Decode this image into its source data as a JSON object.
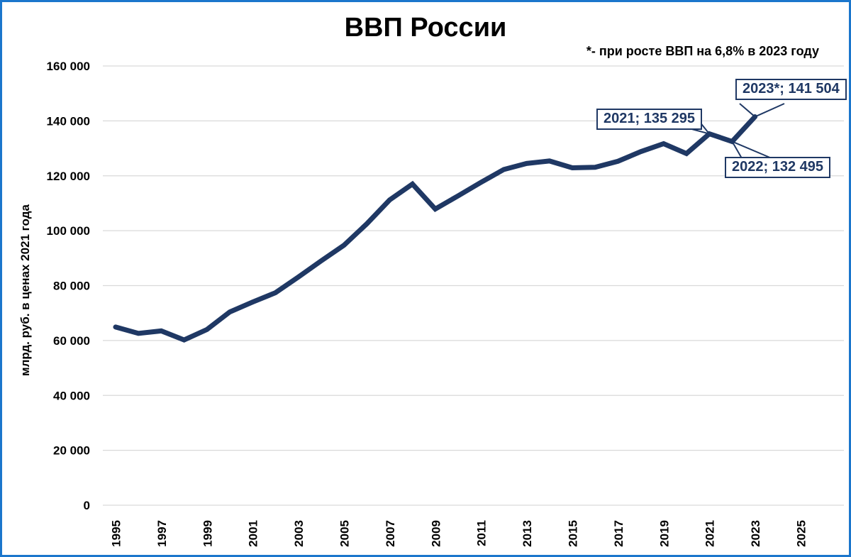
{
  "chart_data": {
    "type": "line",
    "title": "ВВП России",
    "annotation": "*- при росте ВВП на 6,8% в 2023 году",
    "ylabel": "млрд. руб. в ценах 2021 года",
    "xlabel": "",
    "legend": "none",
    "grid": "horizontal",
    "xlim": [
      1995,
      2025
    ],
    "ylim": [
      0,
      160000
    ],
    "years": [
      1995,
      1996,
      1997,
      1998,
      1999,
      2000,
      2001,
      2002,
      2003,
      2004,
      2005,
      2006,
      2007,
      2008,
      2009,
      2010,
      2011,
      2012,
      2013,
      2014,
      2015,
      2016,
      2017,
      2018,
      2019,
      2020,
      2021,
      2022,
      2023
    ],
    "values": [
      64900,
      62600,
      63500,
      60200,
      64000,
      70400,
      74000,
      77400,
      83100,
      89000,
      94700,
      102500,
      111200,
      117000,
      107900,
      112700,
      117600,
      122300,
      124500,
      125400,
      122900,
      123100,
      125300,
      128800,
      131700,
      128100,
      135295,
      132495,
      141504
    ],
    "x_ticks": [
      1995,
      1997,
      1999,
      2001,
      2003,
      2005,
      2007,
      2009,
      2011,
      2013,
      2015,
      2017,
      2019,
      2021,
      2023,
      2025
    ],
    "y_ticks": [
      {
        "value": 0,
        "label": "0"
      },
      {
        "value": 20000,
        "label": "20 000"
      },
      {
        "value": 40000,
        "label": "40 000"
      },
      {
        "value": 60000,
        "label": "60 000"
      },
      {
        "value": 80000,
        "label": "80 000"
      },
      {
        "value": 100000,
        "label": "100 000"
      },
      {
        "value": 120000,
        "label": "120 000"
      },
      {
        "value": 140000,
        "label": "140 000"
      },
      {
        "value": 160000,
        "label": "160 000"
      }
    ],
    "callouts": [
      {
        "year": 2021,
        "value": 135295,
        "label": "2021; 135 295"
      },
      {
        "year": 2022,
        "value": 132495,
        "label": "2022; 132 495"
      },
      {
        "year": 2023,
        "value": 141504,
        "label": "2023*; 141 504"
      }
    ],
    "colors": {
      "line": "#1F3864",
      "grid": "#D9D9D9",
      "frame_border": "#1B76CC",
      "callout": "#1F3864",
      "text": "#000000"
    }
  }
}
